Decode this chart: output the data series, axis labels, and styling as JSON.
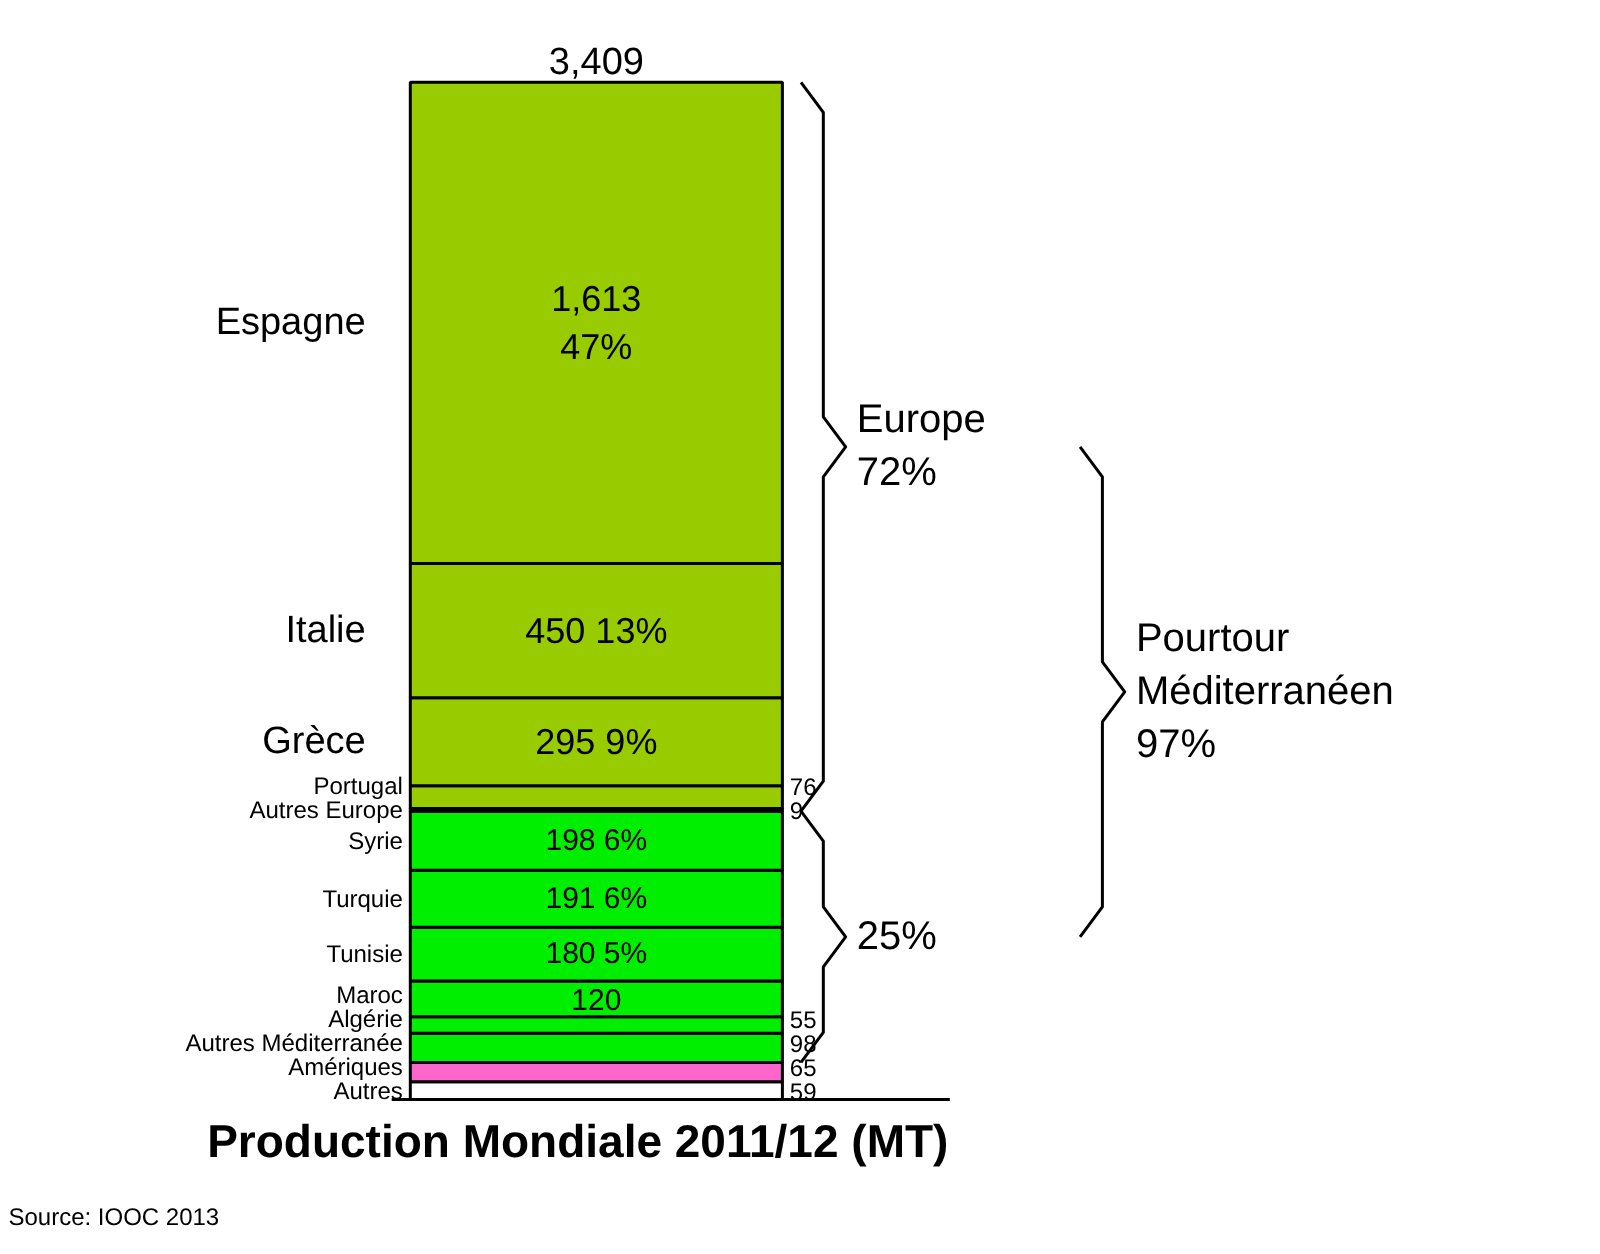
{
  "chart_data": {
    "type": "bar",
    "stacked": true,
    "categories": [
      null
    ],
    "xlabel": "Production Mondiale 2011/12 (MT)",
    "totals": [
      "3,409"
    ],
    "legend": false,
    "grid": false,
    "series": [
      {
        "name": "Autres",
        "color": "#ffffff",
        "values": [
          59
        ],
        "value_labels": [
          "59"
        ]
      },
      {
        "name": "Amériques",
        "color": "#ff66cc",
        "values": [
          65
        ],
        "value_labels": [
          "65"
        ]
      },
      {
        "name": "Autres Méditerranée",
        "color": "#00ee00",
        "values": [
          98
        ],
        "value_labels": [
          "98"
        ]
      },
      {
        "name": "Algérie",
        "color": "#00ee00",
        "values": [
          55
        ],
        "value_labels": [
          "55"
        ]
      },
      {
        "name": "Maroc",
        "color": "#00ee00",
        "values": [
          120
        ],
        "value_labels": [
          "120"
        ]
      },
      {
        "name": "Tunisie",
        "color": "#00ee00",
        "values": [
          180
        ],
        "value_labels": [
          "180 5%"
        ]
      },
      {
        "name": "Turquie",
        "color": "#00ee00",
        "values": [
          191
        ],
        "value_labels": [
          "191 6%"
        ]
      },
      {
        "name": "Syrie",
        "color": "#00ee00",
        "values": [
          198
        ],
        "value_labels": [
          "198 6%"
        ]
      },
      {
        "name": "Autres Europe",
        "color": "#99cc00",
        "values": [
          9
        ],
        "value_labels": [
          "9"
        ]
      },
      {
        "name": "Portugal",
        "color": "#99cc00",
        "values": [
          76
        ],
        "value_labels": [
          "76"
        ]
      },
      {
        "name": "Grèce",
        "color": "#99cc00",
        "values": [
          295
        ],
        "value_labels": [
          "295 9%"
        ]
      },
      {
        "name": "Italie",
        "color": "#99cc00",
        "values": [
          450
        ],
        "value_labels": [
          "450 13%"
        ]
      },
      {
        "name": "Espagne",
        "color": "#99cc00",
        "values": [
          1613
        ],
        "value_labels": [
          "1,613\n47%"
        ]
      }
    ],
    "annotations": [
      "Europe\n72%",
      "25%",
      "Pourtour\nMéditerranéen\n97%",
      "Source: IOOC 2013"
    ]
  }
}
